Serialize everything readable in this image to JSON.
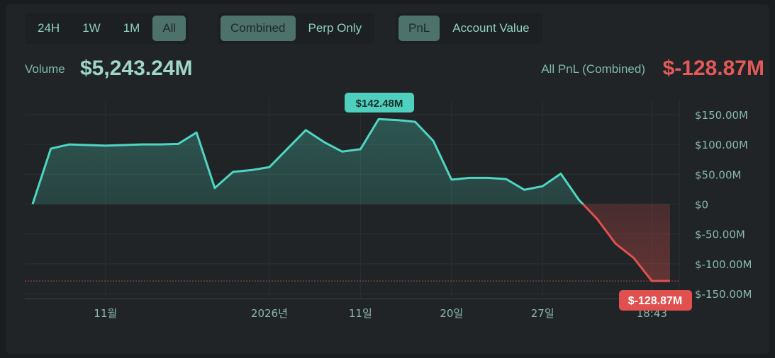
{
  "filters": {
    "range": [
      {
        "label": "24H",
        "active": false
      },
      {
        "label": "1W",
        "active": false
      },
      {
        "label": "1M",
        "active": false
      },
      {
        "label": "All",
        "active": true
      }
    ],
    "scope": [
      {
        "label": "Combined",
        "active": true
      },
      {
        "label": "Perp Only",
        "active": false
      }
    ],
    "metric": [
      {
        "label": "PnL",
        "active": true
      },
      {
        "label": "Account Value",
        "active": false
      }
    ]
  },
  "summary": {
    "volume_label": "Volume",
    "volume_value": "$5,243.24M",
    "pnl_label": "All PnL (Combined)",
    "pnl_value": "$-128.87M"
  },
  "colors": {
    "positive": "#4fd6c2",
    "negative": "#e0504f",
    "accent_bg": "#4d716b"
  },
  "chart_data": {
    "type": "area",
    "values": [
      0,
      93,
      100,
      99,
      98,
      99,
      100,
      100,
      101,
      120,
      27,
      54,
      57,
      62,
      93,
      124,
      104,
      88,
      92,
      142.48,
      141,
      138,
      106,
      41,
      44,
      44,
      42,
      24,
      30,
      51,
      7,
      -25,
      -66,
      -90,
      -128.87,
      -128.87
    ],
    "x_ticks": [
      {
        "index": 4,
        "label": "11월"
      },
      {
        "index": 13,
        "label": "2026년"
      },
      {
        "index": 18,
        "label": "11일"
      },
      {
        "index": 23,
        "label": "20일"
      },
      {
        "index": 28,
        "label": "27일"
      },
      {
        "index": 34,
        "label": "18:43"
      }
    ],
    "y_ticks": [
      {
        "value": 150,
        "label": "$150.00M"
      },
      {
        "value": 100,
        "label": "$100.00M"
      },
      {
        "value": 50,
        "label": "$50.00M"
      },
      {
        "value": 0,
        "label": "$0"
      },
      {
        "value": -50,
        "label": "$-50.00M"
      },
      {
        "value": -100,
        "label": "$-100.00M"
      },
      {
        "value": -150,
        "label": "$-150.00M"
      }
    ],
    "ylim": [
      -150,
      150
    ],
    "max_label": "$142.48M",
    "last_label": "$-128.87M",
    "grid": true
  }
}
